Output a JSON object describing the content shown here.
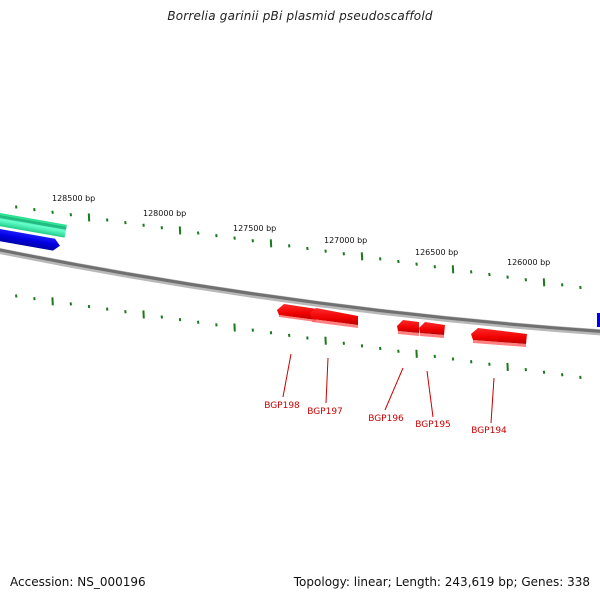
{
  "title": "Borrelia garinii pBi plasmid pseudoscaffold",
  "footer": {
    "accession": "Accession: NS_000196",
    "topology": "Topology: linear; Length: 243,619 bp; Genes: 338"
  },
  "ruler_labels": [
    "128500 bp",
    "128000 bp",
    "127500 bp",
    "127000 bp",
    "126500 bp",
    "126000 bp"
  ],
  "genes": [
    "BGP198",
    "BGP197",
    "BGP196",
    "BGP195",
    "BGP194"
  ],
  "colors": {
    "backbone": "#808080",
    "gene_red": "#ff0000",
    "label_red": "#cc0000",
    "tick_green": "#1a7a1a",
    "feature_teal": "#33ffaa",
    "feature_blue": "#0000ee"
  }
}
